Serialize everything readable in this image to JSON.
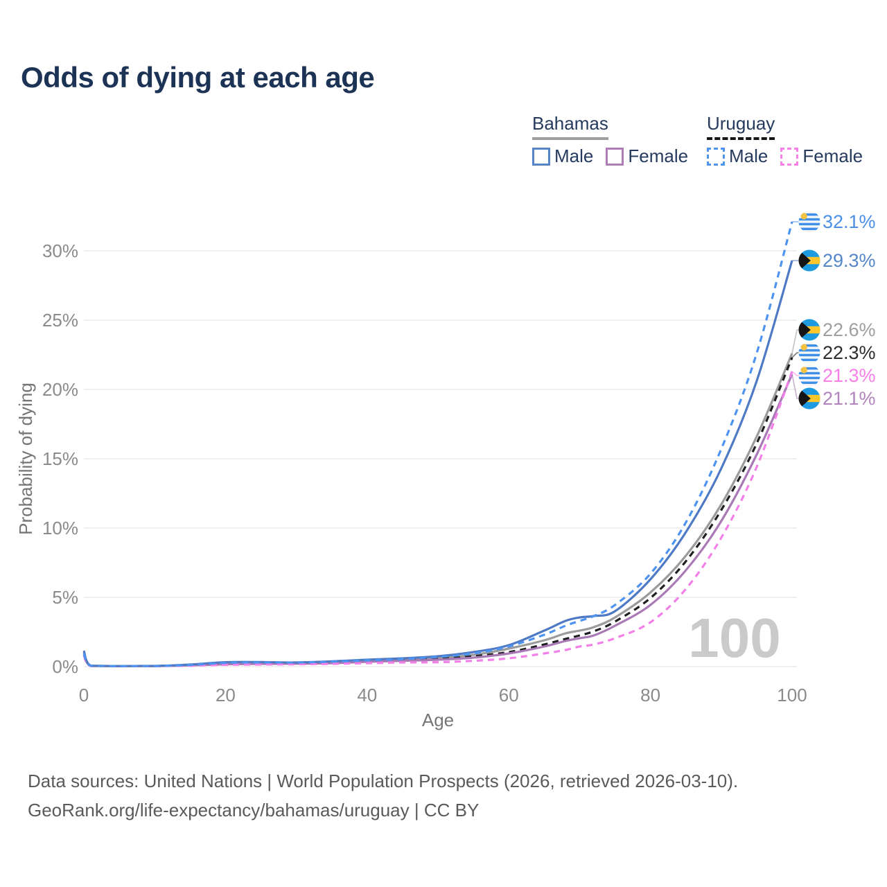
{
  "title": "Odds of dying at each age",
  "watermark": "100",
  "footer": {
    "line1": "Data sources: United Nations | World Population Prospects (2026, retrieved 2026-03-10).",
    "line2": "GeoRank.org/life-expectancy/bahamas/uruguay | CC BY"
  },
  "legend": {
    "groups": [
      {
        "country": "Bahamas",
        "line_style": "solid",
        "underline_color": "#9e9e9e",
        "items": [
          {
            "label": "Male",
            "color": "#5584c9",
            "dash": false
          },
          {
            "label": "Female",
            "color": "#b07cb8",
            "dash": false
          }
        ]
      },
      {
        "country": "Uruguay",
        "line_style": "dashed",
        "underline_color": "#151515",
        "items": [
          {
            "label": "Male",
            "color": "#4d93f0",
            "dash": true
          },
          {
            "label": "Female",
            "color": "#f97fe8",
            "dash": true
          }
        ]
      }
    ]
  },
  "chart_data": {
    "type": "line",
    "title": "Odds of dying at each age",
    "xlabel": "Age",
    "ylabel": "Probability of dying",
    "xlim": [
      0,
      100
    ],
    "ylim": [
      0,
      32.5
    ],
    "grid": true,
    "legend_position": "top-right",
    "x_ticks": [
      0,
      20,
      40,
      60,
      80,
      100
    ],
    "y_ticks": [
      0,
      5,
      10,
      15,
      20,
      25,
      30
    ],
    "y_tick_labels": [
      "0%",
      "5%",
      "10%",
      "15%",
      "20%",
      "25%",
      "30%"
    ],
    "x": [
      0,
      1,
      5,
      10,
      15,
      20,
      25,
      30,
      35,
      40,
      45,
      50,
      55,
      60,
      65,
      68,
      70,
      72,
      75,
      80,
      85,
      90,
      95,
      100
    ],
    "series": [
      {
        "name": "Bahamas Total",
        "country": "Bahamas",
        "flag_icon": "bahamas-flag-icon",
        "color": "#9b9b9b",
        "dash": false,
        "end_value": 22.6,
        "end_label": "22.6%",
        "label_color": "#9e9e9e",
        "values": [
          1.05,
          0.06,
          0.035,
          0.045,
          0.12,
          0.25,
          0.27,
          0.26,
          0.3,
          0.42,
          0.5,
          0.62,
          0.85,
          1.3,
          1.9,
          2.4,
          2.6,
          2.85,
          3.55,
          5.35,
          8.0,
          11.7,
          16.6,
          22.6
        ]
      },
      {
        "name": "Uruguay Total",
        "country": "Uruguay",
        "flag_icon": "uruguay-flag-icon",
        "color": "#1f1f1f",
        "dash": true,
        "end_value": 22.3,
        "end_label": "22.3%",
        "label_color": "#2b2b2b",
        "values": [
          0.85,
          0.05,
          0.03,
          0.035,
          0.1,
          0.2,
          0.23,
          0.24,
          0.28,
          0.38,
          0.45,
          0.55,
          0.75,
          1.05,
          1.6,
          2.0,
          2.25,
          2.55,
          3.25,
          4.95,
          7.6,
          11.3,
          16.1,
          22.3
        ]
      },
      {
        "name": "Bahamas Female",
        "country": "Bahamas",
        "flag_icon": "bahamas-flag-icon",
        "color": "#a979b5",
        "dash": false,
        "end_value": 21.1,
        "end_label": "21.1%",
        "label_color": "#b183bd",
        "values": [
          0.95,
          0.05,
          0.03,
          0.04,
          0.09,
          0.17,
          0.2,
          0.21,
          0.25,
          0.35,
          0.42,
          0.5,
          0.65,
          0.95,
          1.45,
          1.85,
          2.05,
          2.25,
          2.95,
          4.45,
          6.95,
          10.5,
          15.3,
          21.1
        ]
      },
      {
        "name": "Uruguay Female",
        "country": "Uruguay",
        "flag_icon": "uruguay-flag-icon",
        "color": "#f280e8",
        "dash": true,
        "end_value": 21.3,
        "end_label": "21.3%",
        "label_color": "#f97fe8",
        "values": [
          0.8,
          0.04,
          0.025,
          0.03,
          0.07,
          0.13,
          0.15,
          0.17,
          0.2,
          0.25,
          0.3,
          0.32,
          0.42,
          0.6,
          0.95,
          1.2,
          1.45,
          1.6,
          2.05,
          3.2,
          5.6,
          9.3,
          14.4,
          21.3
        ]
      },
      {
        "name": "Bahamas Male",
        "country": "Bahamas",
        "flag_icon": "bahamas-flag-icon",
        "color": "#4e79c4",
        "dash": false,
        "end_value": 29.3,
        "end_label": "29.3%",
        "label_color": "#5585c9",
        "values": [
          1.15,
          0.07,
          0.04,
          0.05,
          0.15,
          0.32,
          0.33,
          0.3,
          0.38,
          0.5,
          0.6,
          0.75,
          1.05,
          1.55,
          2.6,
          3.3,
          3.55,
          3.65,
          4.0,
          6.3,
          9.7,
          14.3,
          20.6,
          29.3
        ]
      },
      {
        "name": "Uruguay Male",
        "country": "Uruguay",
        "flag_icon": "uruguay-flag-icon",
        "color": "#4d93f0",
        "dash": true,
        "end_value": 32.1,
        "end_label": "32.1%",
        "label_color": "#4a90e8",
        "values": [
          0.95,
          0.06,
          0.03,
          0.04,
          0.12,
          0.27,
          0.3,
          0.3,
          0.36,
          0.45,
          0.55,
          0.7,
          0.95,
          1.45,
          2.3,
          2.95,
          3.3,
          3.65,
          4.45,
          6.7,
          10.4,
          15.7,
          22.6,
          32.1
        ]
      }
    ]
  }
}
